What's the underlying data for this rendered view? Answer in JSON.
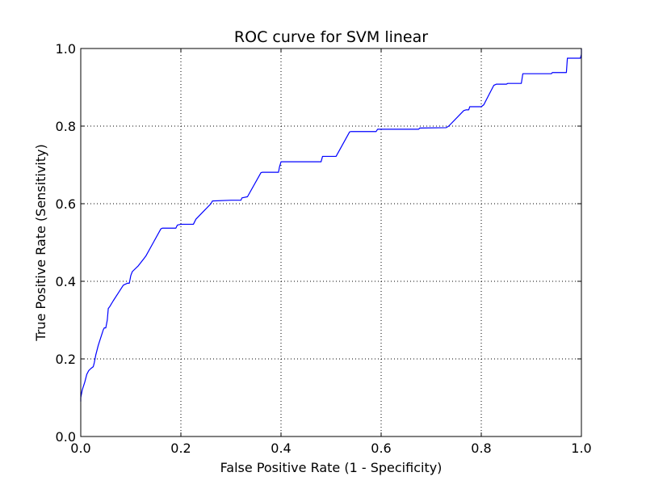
{
  "chart_data": {
    "type": "line",
    "title": "ROC curve for SVM linear",
    "xlabel": "False Positive Rate (1 - Specificity)",
    "ylabel": "True Positive Rate (Sensitivity)",
    "xlim": [
      0.0,
      1.0
    ],
    "ylim": [
      0.0,
      1.0
    ],
    "xticks": [
      "0.0",
      "0.2",
      "0.4",
      "0.6",
      "0.8",
      "1.0"
    ],
    "yticks": [
      "0.0",
      "0.2",
      "0.4",
      "0.6",
      "0.8",
      "1.0"
    ],
    "grid": true,
    "line_color": "#0000ff",
    "series": [
      {
        "x": [
          0.0,
          0.0,
          0.003,
          0.008,
          0.012,
          0.016,
          0.02,
          0.025,
          0.027,
          0.03,
          0.035,
          0.04,
          0.045,
          0.047,
          0.05,
          0.053,
          0.055,
          0.058,
          0.065,
          0.075,
          0.085,
          0.093,
          0.097,
          0.1,
          0.103,
          0.115,
          0.127,
          0.13,
          0.145,
          0.16,
          0.163,
          0.19,
          0.193,
          0.2,
          0.225,
          0.23,
          0.26,
          0.263,
          0.3,
          0.32,
          0.322,
          0.333,
          0.36,
          0.363,
          0.395,
          0.397,
          0.4,
          0.48,
          0.483,
          0.51,
          0.537,
          0.54,
          0.59,
          0.593,
          0.675,
          0.677,
          0.73,
          0.735,
          0.765,
          0.77,
          0.775,
          0.777,
          0.8,
          0.805,
          0.825,
          0.83,
          0.85,
          0.853,
          0.88,
          0.883,
          0.94,
          0.942,
          0.97,
          0.972,
          0.998,
          1.0,
          1.0
        ],
        "y": [
          0.09,
          0.1,
          0.12,
          0.14,
          0.16,
          0.17,
          0.175,
          0.18,
          0.19,
          0.21,
          0.235,
          0.255,
          0.275,
          0.28,
          0.28,
          0.3,
          0.33,
          0.335,
          0.35,
          0.37,
          0.39,
          0.395,
          0.395,
          0.415,
          0.425,
          0.44,
          0.46,
          0.465,
          0.5,
          0.535,
          0.537,
          0.537,
          0.545,
          0.547,
          0.547,
          0.56,
          0.6,
          0.607,
          0.609,
          0.609,
          0.615,
          0.618,
          0.68,
          0.681,
          0.681,
          0.695,
          0.708,
          0.708,
          0.722,
          0.722,
          0.785,
          0.786,
          0.786,
          0.792,
          0.792,
          0.795,
          0.796,
          0.8,
          0.84,
          0.842,
          0.842,
          0.85,
          0.85,
          0.855,
          0.905,
          0.908,
          0.908,
          0.91,
          0.91,
          0.935,
          0.935,
          0.938,
          0.938,
          0.975,
          0.975,
          0.985,
          1.0
        ]
      }
    ]
  }
}
